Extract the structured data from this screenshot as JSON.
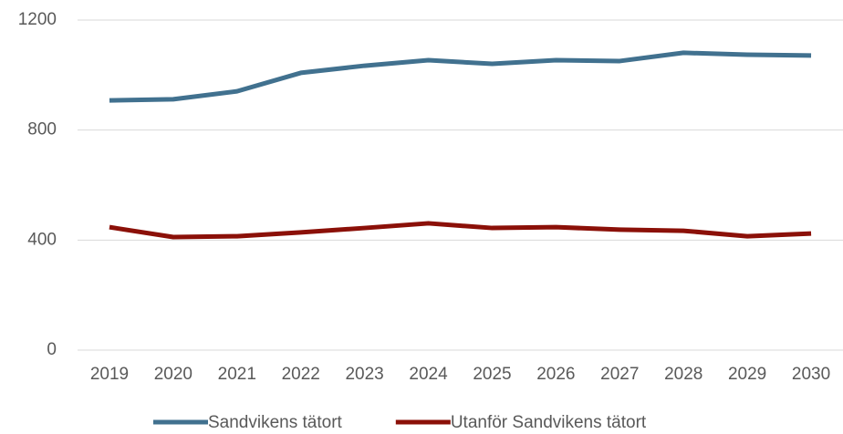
{
  "chart_data": {
    "type": "line",
    "categories": [
      "2019",
      "2020",
      "2021",
      "2022",
      "2023",
      "2024",
      "2025",
      "2026",
      "2027",
      "2028",
      "2029",
      "2030"
    ],
    "series": [
      {
        "name": "Sandvikens tätort",
        "color": "#41718f",
        "values": [
          908,
          912,
          941,
          1008,
          1034,
          1054,
          1041,
          1054,
          1051,
          1081,
          1074,
          1071
        ]
      },
      {
        "name": "Utanför Sandvikens tätort",
        "color": "#8b1008",
        "values": [
          447,
          411,
          414,
          428,
          444,
          461,
          444,
          447,
          438,
          434,
          414,
          424
        ]
      }
    ],
    "ylim": [
      0,
      1200
    ],
    "yticks": [
      0,
      400,
      800,
      1200
    ],
    "grid": true,
    "legend": "bottom"
  }
}
